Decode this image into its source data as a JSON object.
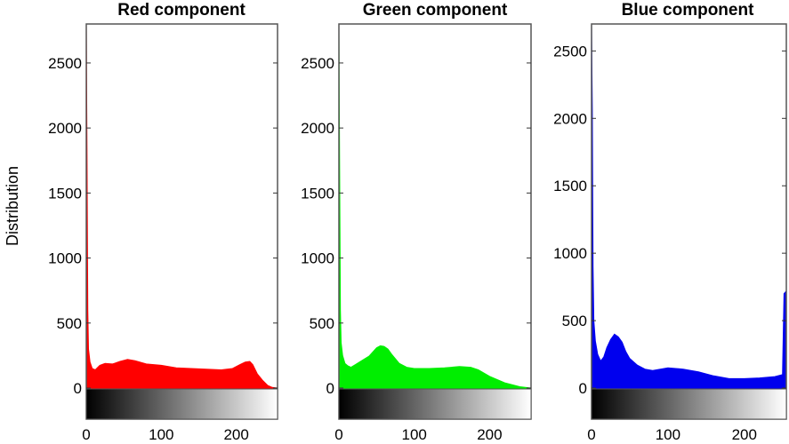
{
  "chart_data": [
    {
      "type": "area",
      "title": "Red component",
      "ylabel": "Distribution",
      "xlim": [
        0,
        255
      ],
      "ylim": [
        0,
        2800
      ],
      "xticks": [
        "0",
        "100",
        "200"
      ],
      "yticks": [
        "0",
        "500",
        "1000",
        "1500",
        "2000",
        "2500"
      ],
      "color": "#ff0000",
      "x": [
        0,
        1,
        2,
        3,
        5,
        8,
        12,
        18,
        25,
        35,
        45,
        55,
        65,
        80,
        100,
        120,
        140,
        160,
        180,
        195,
        205,
        212,
        218,
        222,
        228,
        235,
        242,
        248,
        255
      ],
      "values": [
        2800,
        1850,
        600,
        300,
        200,
        150,
        140,
        175,
        190,
        185,
        205,
        220,
        210,
        185,
        175,
        155,
        150,
        145,
        140,
        150,
        180,
        200,
        205,
        180,
        110,
        60,
        20,
        5,
        0
      ]
    },
    {
      "type": "area",
      "title": "Green component",
      "ylabel": "",
      "xlim": [
        0,
        255
      ],
      "ylim": [
        0,
        2800
      ],
      "xticks": [
        "0",
        "100",
        "200"
      ],
      "yticks": [
        "0",
        "500",
        "1000",
        "1500",
        "2000",
        "2500"
      ],
      "color": "#00ee00",
      "x": [
        0,
        1,
        2,
        3,
        5,
        8,
        12,
        16,
        22,
        30,
        40,
        50,
        55,
        60,
        65,
        70,
        80,
        90,
        100,
        120,
        140,
        160,
        175,
        185,
        200,
        220,
        240,
        255
      ],
      "values": [
        2750,
        1720,
        600,
        350,
        250,
        190,
        170,
        160,
        180,
        210,
        245,
        310,
        325,
        320,
        300,
        260,
        190,
        160,
        150,
        150,
        155,
        165,
        160,
        140,
        90,
        40,
        10,
        0
      ]
    },
    {
      "type": "area",
      "title": "Blue component",
      "ylabel": "",
      "xlim": [
        0,
        255
      ],
      "ylim": [
        0,
        2700
      ],
      "xticks": [
        "0",
        "100",
        "200"
      ],
      "yticks": [
        "0",
        "500",
        "1000",
        "1500",
        "2000",
        "2500"
      ],
      "color": "#0000ee",
      "x": [
        0,
        1,
        2,
        3,
        5,
        8,
        12,
        16,
        20,
        25,
        30,
        35,
        40,
        45,
        50,
        60,
        70,
        80,
        100,
        120,
        140,
        160,
        180,
        200,
        220,
        240,
        250,
        252,
        255
      ],
      "values": [
        2700,
        2050,
        900,
        500,
        350,
        250,
        200,
        230,
        300,
        360,
        400,
        380,
        340,
        270,
        220,
        170,
        140,
        130,
        150,
        140,
        120,
        90,
        70,
        70,
        75,
        85,
        100,
        700,
        720
      ]
    }
  ]
}
